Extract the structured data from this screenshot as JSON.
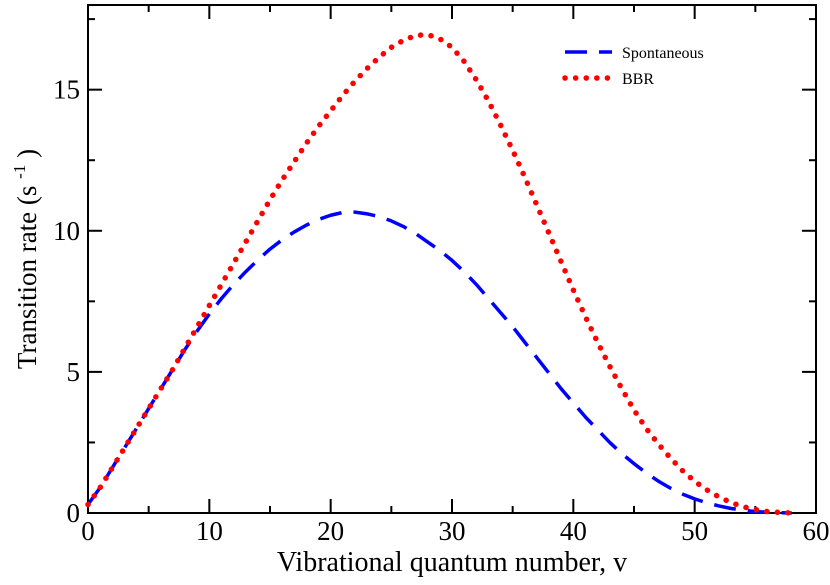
{
  "chart_data": {
    "type": "line",
    "xlabel": "Vibrational quantum number, v",
    "ylabel": {
      "main": "Transition rate (s",
      "sup": "-1",
      "close": ")"
    },
    "xlim": [
      0,
      60
    ],
    "ylim": [
      0,
      18
    ],
    "xticks": [
      "0",
      "10",
      "20",
      "30",
      "40",
      "50",
      "60"
    ],
    "yticks": [
      "0",
      "5",
      "10",
      "15"
    ],
    "grid": false,
    "legend_position": "top-right",
    "series": [
      {
        "name": "Spontaneous",
        "color": "#0000ff",
        "style": "dashed",
        "points": [
          [
            0,
            0.3
          ],
          [
            1,
            0.9
          ],
          [
            2,
            1.6
          ],
          [
            3,
            2.3
          ],
          [
            4,
            3.0
          ],
          [
            5,
            3.7
          ],
          [
            6,
            4.4
          ],
          [
            7,
            5.1
          ],
          [
            8,
            5.8
          ],
          [
            9,
            6.45
          ],
          [
            10,
            7.05
          ],
          [
            11,
            7.6
          ],
          [
            12,
            8.1
          ],
          [
            13,
            8.55
          ],
          [
            14,
            8.97
          ],
          [
            15,
            9.35
          ],
          [
            16,
            9.68
          ],
          [
            17,
            9.96
          ],
          [
            18,
            10.2
          ],
          [
            19,
            10.4
          ],
          [
            20,
            10.55
          ],
          [
            21,
            10.65
          ],
          [
            22,
            10.66
          ],
          [
            23,
            10.6
          ],
          [
            24,
            10.5
          ],
          [
            25,
            10.35
          ],
          [
            26,
            10.15
          ],
          [
            27,
            9.9
          ],
          [
            28,
            9.6
          ],
          [
            29,
            9.3
          ],
          [
            30,
            8.95
          ],
          [
            31,
            8.55
          ],
          [
            32,
            8.1
          ],
          [
            33,
            7.6
          ],
          [
            34,
            7.1
          ],
          [
            35,
            6.6
          ],
          [
            36,
            6.05
          ],
          [
            37,
            5.5
          ],
          [
            38,
            4.95
          ],
          [
            39,
            4.4
          ],
          [
            40,
            3.9
          ],
          [
            41,
            3.4
          ],
          [
            42,
            2.95
          ],
          [
            43,
            2.5
          ],
          [
            44,
            2.1
          ],
          [
            45,
            1.75
          ],
          [
            46,
            1.42
          ],
          [
            47,
            1.13
          ],
          [
            48,
            0.88
          ],
          [
            49,
            0.67
          ],
          [
            50,
            0.5
          ],
          [
            51,
            0.36
          ],
          [
            52,
            0.25
          ],
          [
            53,
            0.16
          ],
          [
            54,
            0.1
          ],
          [
            55,
            0.05
          ],
          [
            56,
            0.03
          ],
          [
            57,
            0.01
          ],
          [
            58,
            0.0
          ]
        ]
      },
      {
        "name": "BBR",
        "color": "#ff0000",
        "style": "dotted",
        "points": [
          [
            0,
            0.3
          ],
          [
            1,
            0.9
          ],
          [
            2,
            1.6
          ],
          [
            3,
            2.3
          ],
          [
            4,
            3.0
          ],
          [
            5,
            3.7
          ],
          [
            6,
            4.4
          ],
          [
            7,
            5.1
          ],
          [
            8,
            5.85
          ],
          [
            9,
            6.6
          ],
          [
            10,
            7.35
          ],
          [
            11,
            8.1
          ],
          [
            12,
            8.85
          ],
          [
            13,
            9.6
          ],
          [
            14,
            10.35
          ],
          [
            15,
            11.1
          ],
          [
            16,
            11.8
          ],
          [
            17,
            12.45
          ],
          [
            18,
            13.1
          ],
          [
            19,
            13.7
          ],
          [
            20,
            14.25
          ],
          [
            21,
            14.8
          ],
          [
            22,
            15.3
          ],
          [
            23,
            15.75
          ],
          [
            24,
            16.15
          ],
          [
            25,
            16.5
          ],
          [
            26,
            16.75
          ],
          [
            27,
            16.92
          ],
          [
            28,
            16.95
          ],
          [
            29,
            16.8
          ],
          [
            30,
            16.5
          ],
          [
            31,
            16.0
          ],
          [
            32,
            15.35
          ],
          [
            33,
            14.6
          ],
          [
            34,
            13.75
          ],
          [
            35,
            12.85
          ],
          [
            36,
            11.9
          ],
          [
            37,
            10.9
          ],
          [
            38,
            9.9
          ],
          [
            39,
            8.9
          ],
          [
            40,
            7.9
          ],
          [
            41,
            6.95
          ],
          [
            42,
            6.05
          ],
          [
            43,
            5.2
          ],
          [
            44,
            4.4
          ],
          [
            45,
            3.65
          ],
          [
            46,
            3.0
          ],
          [
            47,
            2.45
          ],
          [
            48,
            1.95
          ],
          [
            49,
            1.5
          ],
          [
            50,
            1.12
          ],
          [
            51,
            0.82
          ],
          [
            52,
            0.57
          ],
          [
            53,
            0.37
          ],
          [
            54,
            0.22
          ],
          [
            55,
            0.12
          ],
          [
            56,
            0.05
          ],
          [
            57,
            0.02
          ],
          [
            58,
            0.0
          ]
        ]
      }
    ]
  }
}
